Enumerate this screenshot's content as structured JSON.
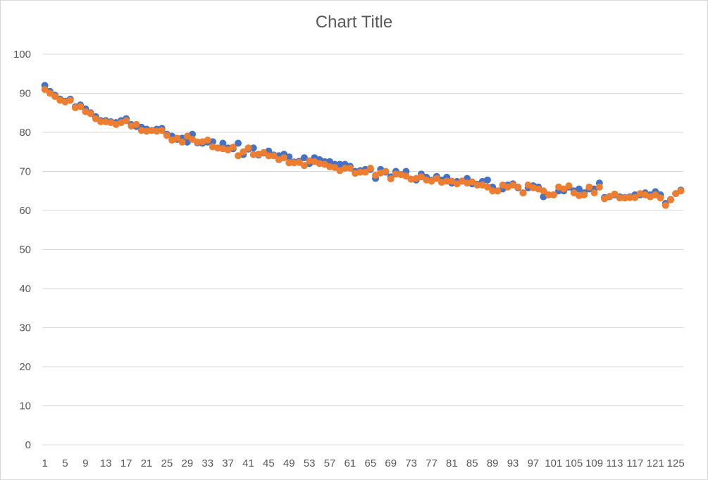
{
  "chart_data": {
    "type": "scatter",
    "title": "Chart Title",
    "xlabel": "",
    "ylabel": "",
    "xlim": [
      1,
      125
    ],
    "ylim": [
      0,
      100
    ],
    "y_ticks": [
      0,
      10,
      20,
      30,
      40,
      50,
      60,
      70,
      80,
      90,
      100
    ],
    "x_tick_labels": [
      "1",
      "5",
      "9",
      "13",
      "17",
      "21",
      "25",
      "29",
      "33",
      "37",
      "41",
      "45",
      "49",
      "53",
      "57",
      "61",
      "65",
      "69",
      "73",
      "77",
      "81",
      "85",
      "89",
      "93",
      "97",
      "101",
      "105",
      "109",
      "113",
      "117",
      "121",
      "125"
    ],
    "grid": true,
    "legend": "none",
    "colors": [
      "#4472C4",
      "#ED7D31"
    ],
    "series": [
      {
        "values": [
          92,
          90.5,
          89.5,
          88.5,
          88,
          88.5,
          86.5,
          87,
          86,
          85,
          84,
          83,
          83,
          82.7,
          82.5,
          83,
          83.5,
          82,
          81.5,
          81.3,
          80.8,
          80.5,
          80.8,
          81,
          79.5,
          79,
          78.2,
          78.5,
          77.5,
          79.5,
          77.3,
          77.2,
          77.5,
          77.6,
          76,
          77.2,
          76,
          75.8,
          77.2,
          74.3,
          75.7,
          76,
          74.2,
          74.7,
          75.2,
          74.2,
          74,
          74.4,
          73.7,
          72.4,
          72.6,
          73.5,
          72,
          73.5,
          73,
          72.5,
          72.5,
          71.8,
          71.8,
          71.8,
          71.3,
          70,
          70.2,
          70.5,
          70.5,
          68.2,
          70.5,
          69.8,
          68.6,
          70,
          69.2,
          70,
          68,
          67.8,
          69.3,
          68.5,
          67.7,
          68.7,
          67.8,
          68.5,
          67,
          67.4,
          67.5,
          68.2,
          66.8,
          66.7,
          67.4,
          67.8,
          66,
          65,
          65.5,
          66.5,
          66.8,
          65.8,
          64.5,
          65.8,
          66.3,
          66,
          63.5,
          64,
          64,
          65,
          65,
          66,
          65,
          65.5,
          64.5,
          65.5,
          65.5,
          67,
          63.3,
          63.5,
          64,
          63.5,
          63.3,
          63.5,
          64,
          64,
          64.5,
          64,
          64.8,
          64,
          61.8,
          62.8,
          64.3,
          65.2
        ]
      },
      {
        "values": [
          91,
          90,
          89.2,
          88.2,
          87.8,
          88.2,
          86.3,
          86.6,
          85.3,
          84.8,
          83.5,
          82.7,
          82.7,
          82.5,
          82,
          82.5,
          83,
          81.6,
          82,
          80.5,
          80.3,
          80.5,
          80.3,
          80.5,
          79.2,
          78,
          78.5,
          77.5,
          79,
          78.2,
          77.5,
          77.6,
          78,
          76.3,
          76,
          75.8,
          75.5,
          76.2,
          74,
          75,
          76,
          74.3,
          74.4,
          74.8,
          74,
          74,
          73,
          73.5,
          72.2,
          72.2,
          72.3,
          71.5,
          72.7,
          72.5,
          72,
          71.8,
          71.2,
          71,
          70.2,
          70.8,
          70.8,
          69.5,
          69.8,
          69.8,
          70.8,
          69,
          69.6,
          70,
          68.1,
          69.3,
          69.2,
          68.8,
          68,
          68.2,
          68.6,
          67.8,
          67.5,
          68.2,
          67.2,
          67.5,
          67.5,
          66.8,
          67.5,
          67,
          67.3,
          66.5,
          66.5,
          66,
          65,
          65,
          66.5,
          66,
          66.5,
          66,
          64.5,
          66.5,
          65.8,
          65.5,
          65,
          64,
          64,
          66,
          65.5,
          66.3,
          64.5,
          63.8,
          64,
          66,
          64.5,
          66,
          63,
          63.6,
          64.2,
          63.2,
          63.2,
          63.3,
          63.3,
          64.3,
          64,
          63.5,
          64,
          63.2,
          61.3,
          62.7,
          64.3,
          65
        ]
      }
    ]
  }
}
